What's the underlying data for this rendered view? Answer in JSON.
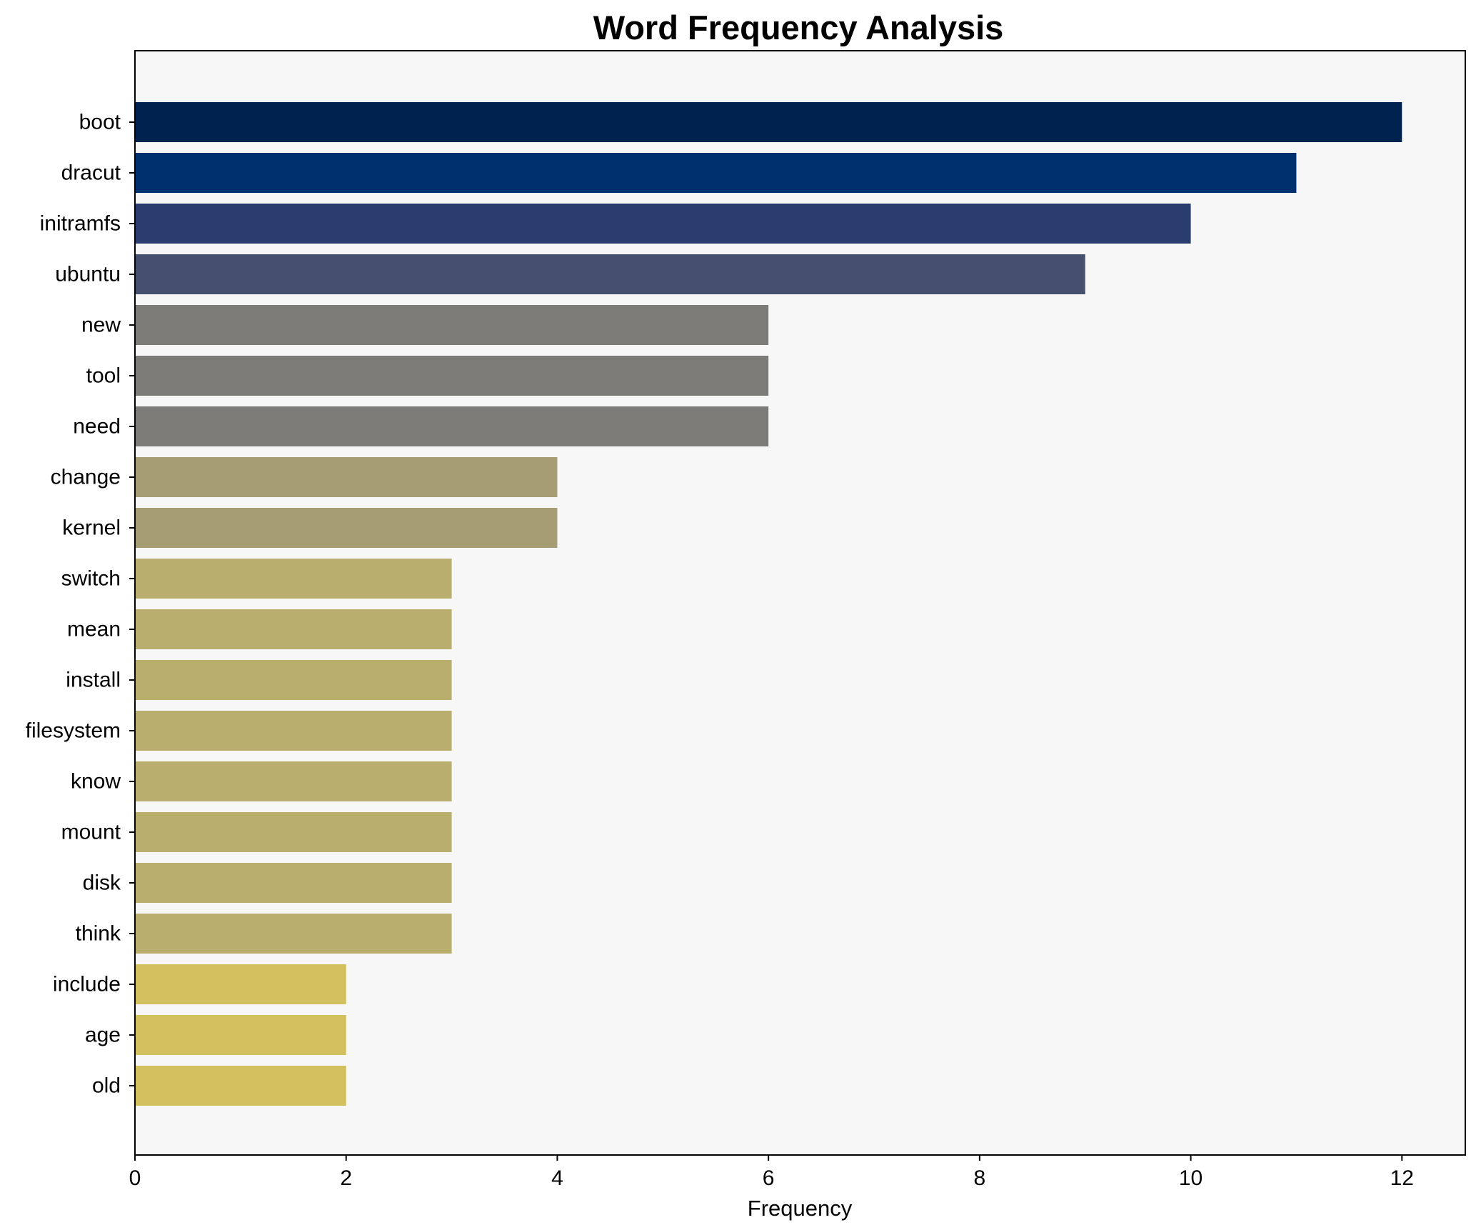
{
  "chart_data": {
    "type": "bar",
    "orientation": "horizontal",
    "title": "Word Frequency Analysis",
    "xlabel": "Frequency",
    "ylabel": "",
    "xlim": [
      0,
      12.6
    ],
    "xticks": [
      0,
      2,
      4,
      6,
      8,
      10,
      12
    ],
    "grid": false,
    "legend": "none",
    "plot_background": "#f7f7f7",
    "categories": [
      "boot",
      "dracut",
      "initramfs",
      "ubuntu",
      "new",
      "tool",
      "need",
      "change",
      "kernel",
      "switch",
      "mean",
      "install",
      "filesystem",
      "know",
      "mount",
      "disk",
      "think",
      "include",
      "age",
      "old"
    ],
    "values": [
      12,
      11,
      10,
      9,
      6,
      6,
      6,
      4,
      4,
      3,
      3,
      3,
      3,
      3,
      3,
      3,
      3,
      2,
      2,
      2
    ],
    "colors": [
      "#00224e",
      "#01306f",
      "#2b3d6c",
      "#44506d",
      "#7c7b78",
      "#7c7b78",
      "#7c7b78",
      "#a69d75",
      "#a69d75",
      "#baae6f",
      "#baae6f",
      "#baae6f",
      "#baae6f",
      "#baae6f",
      "#baae6f",
      "#baae6f",
      "#baae6f",
      "#d2bf5d",
      "#d2bf5d",
      "#d2bf5d"
    ]
  }
}
